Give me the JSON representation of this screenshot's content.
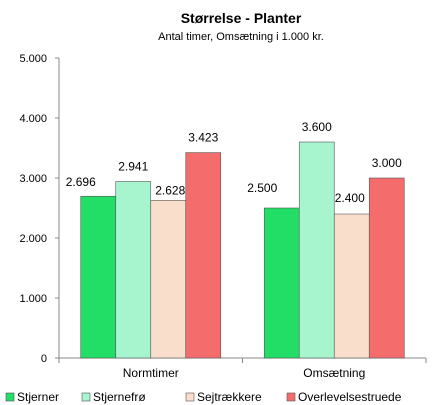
{
  "chart_data": {
    "type": "bar",
    "title": "Størrelse - Planter",
    "subtitle": "Antal timer, Omsætning i 1.000 kr.",
    "categories": [
      "Normtimer",
      "Omsætning"
    ],
    "series": [
      {
        "name": "Stjerner",
        "values": [
          2696,
          2500
        ],
        "labels": [
          "2.696",
          "2.500"
        ],
        "color": "#22dd66"
      },
      {
        "name": "Stjernefrø",
        "values": [
          2941,
          3600
        ],
        "labels": [
          "2.941",
          "3.600"
        ],
        "color": "#a7f5cf"
      },
      {
        "name": "Sejtrækkere",
        "values": [
          2628,
          2400
        ],
        "labels": [
          "2.628",
          "2.400"
        ],
        "color": "#f9decb"
      },
      {
        "name": "Overlevelsestruede",
        "values": [
          3423,
          3000
        ],
        "labels": [
          "3.423",
          "3.000"
        ],
        "color": "#f56c6c"
      }
    ],
    "ylim": [
      0,
      5000
    ],
    "yticks": [
      0,
      1000,
      2000,
      3000,
      4000,
      5000
    ],
    "ytick_labels": [
      "0",
      "1.000",
      "2.000",
      "3.000",
      "4.000",
      "5.000"
    ],
    "grid": false,
    "legend_position": "bottom"
  }
}
